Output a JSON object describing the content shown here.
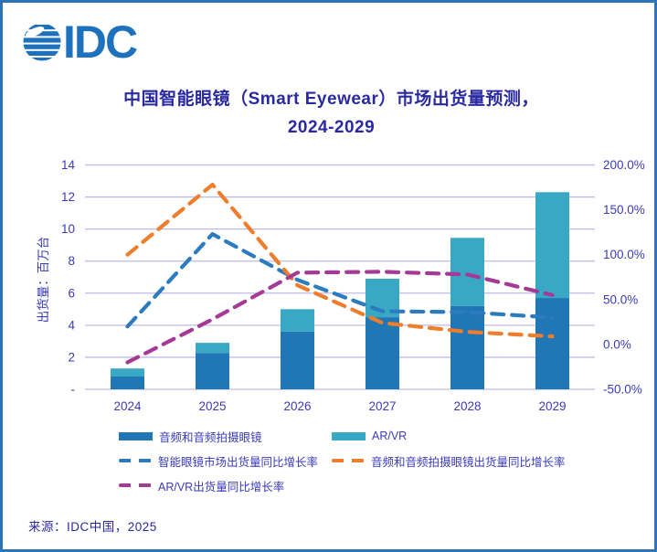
{
  "window": {
    "border_color": "#2e74b5",
    "background": "#ffffff",
    "text_color": "#2a2aa0",
    "tick_color": "#3a3aba"
  },
  "logo": {
    "text": "IDC",
    "color": "#1e72bd"
  },
  "title": {
    "line1": "中国智能眼镜（Smart Eyewear）市场出货量预测，",
    "line2": "2024-2029"
  },
  "source": {
    "text": "来源：IDC中国，2025"
  },
  "legend": {
    "items": [
      {
        "label": "音频和音频拍摄眼镜",
        "color": "#2176b5",
        "style": "solid"
      },
      {
        "label": "AR/VR",
        "color": "#38a8c5",
        "style": "solid"
      },
      {
        "label": "智能眼镜市场出货量同比增长率",
        "color": "#2b7bbe",
        "style": "dashed"
      },
      {
        "label": "音频和音频拍摄眼镜出货量同比增长率",
        "color": "#ee7d2c",
        "style": "dashed"
      },
      {
        "label": "AR/VR出货量同比增长率",
        "color": "#a53a96",
        "style": "dashed"
      }
    ]
  },
  "chart_data": {
    "type": "combo: stacked-bar + line",
    "categories": [
      "2024",
      "2025",
      "2026",
      "2027",
      "2028",
      "2029"
    ],
    "bar_series": [
      {
        "name": "音频和音频拍摄眼镜",
        "color": "#2176b5",
        "values": [
          0.8,
          2.25,
          3.6,
          4.5,
          5.2,
          5.7
        ]
      },
      {
        "name": "AR/VR",
        "color": "#38a8c5",
        "values": [
          0.5,
          0.65,
          1.4,
          2.4,
          4.25,
          6.6
        ]
      }
    ],
    "line_series": [
      {
        "name": "智能眼镜市场出货量同比增长率",
        "color": "#2b7bbe",
        "values_pct": [
          20,
          123,
          72,
          37,
          36,
          30
        ]
      },
      {
        "name": "音频和音频拍摄眼镜出货量同比增长率",
        "color": "#ee7d2c",
        "values_pct": [
          100,
          178,
          66,
          24,
          14,
          9
        ]
      },
      {
        "name": "AR/VR出货量同比增长率",
        "color": "#a53a96",
        "values_pct": [
          -20,
          28,
          80,
          81,
          78,
          55
        ]
      }
    ],
    "left_axis": {
      "title": "出货量：百万台",
      "min": 0,
      "max": 14,
      "step": 2,
      "tick_labels_bottom_up": [
        "-",
        "2",
        "4",
        "6",
        "8",
        "10",
        "12",
        "14"
      ]
    },
    "right_axis": {
      "min": -50,
      "max": 200,
      "step": 50,
      "tick_labels_bottom_up": [
        "-50.0%",
        "0.0%",
        "50.0%",
        "100.0%",
        "150.0%",
        "200.0%"
      ]
    },
    "grid": "horizontal, light periwinkle #bdbce9",
    "legend_position": "below plot, two columns"
  }
}
